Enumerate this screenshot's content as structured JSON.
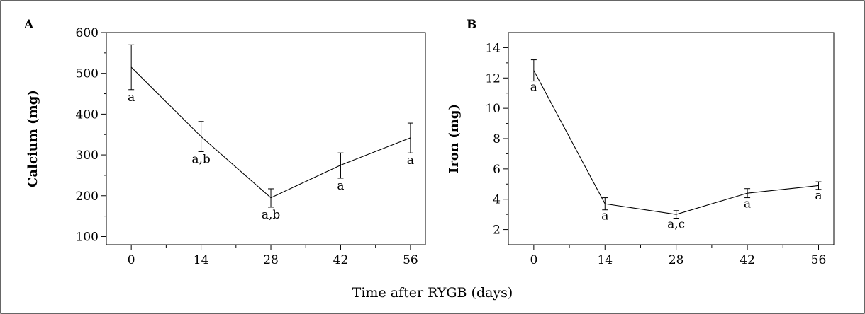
{
  "figure": {
    "xlabel": "Time after RYGB (days)"
  },
  "chart_data": [
    {
      "type": "line",
      "panel": "A",
      "ylabel": "Calcium (mg)",
      "x": [
        0,
        14,
        28,
        42,
        56
      ],
      "xticks": [
        "0",
        "14",
        "28",
        "42",
        "56"
      ],
      "xlim": [
        -5,
        59
      ],
      "ylim": [
        80,
        600
      ],
      "yticks": [
        "100",
        "200",
        "300",
        "400",
        "500",
        "600"
      ],
      "ytick_values": [
        100,
        200,
        300,
        400,
        500,
        600
      ],
      "grid": false,
      "series": [
        {
          "values": [
            515,
            345,
            195,
            275,
            342
          ],
          "err_low": [
            460,
            308,
            172,
            243,
            305
          ],
          "err_high": [
            570,
            382,
            217,
            305,
            378
          ],
          "labels": [
            "a",
            "a,b",
            "a,b",
            "a",
            "a"
          ]
        }
      ]
    },
    {
      "type": "line",
      "panel": "B",
      "ylabel": "Iron (mg)",
      "x": [
        0,
        14,
        28,
        42,
        56
      ],
      "xticks": [
        "0",
        "14",
        "28",
        "42",
        "56"
      ],
      "xlim": [
        -5,
        59
      ],
      "ylim": [
        1,
        15
      ],
      "yticks": [
        "2",
        "4",
        "6",
        "8",
        "10",
        "12",
        "14"
      ],
      "ytick_values": [
        2,
        4,
        6,
        8,
        10,
        12,
        14
      ],
      "grid": false,
      "series": [
        {
          "values": [
            12.5,
            3.7,
            3.0,
            4.4,
            4.9
          ],
          "err_low": [
            11.8,
            3.3,
            2.75,
            4.1,
            4.65
          ],
          "err_high": [
            13.2,
            4.1,
            3.25,
            4.7,
            5.15
          ],
          "labels": [
            "a",
            "a",
            "a,c",
            "a",
            "a"
          ]
        }
      ]
    }
  ]
}
